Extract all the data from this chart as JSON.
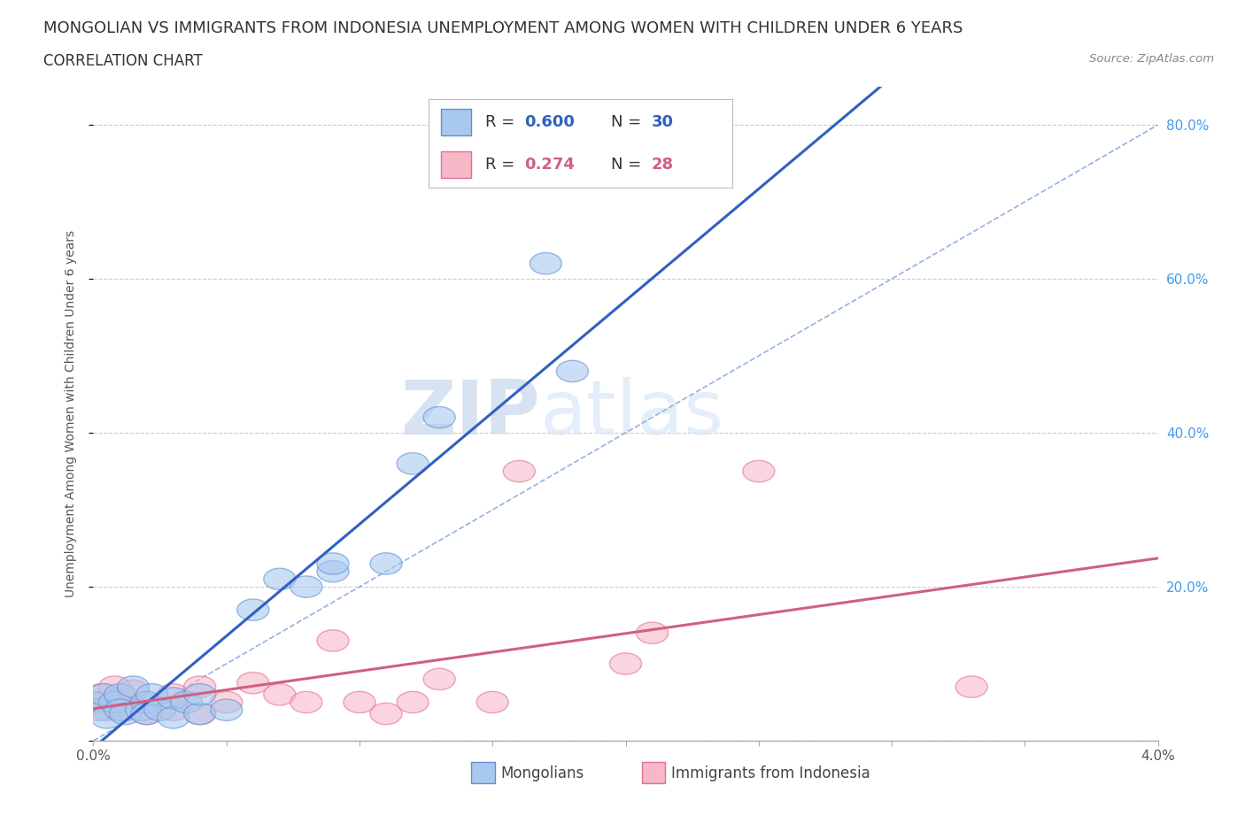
{
  "title_line1": "MONGOLIAN VS IMMIGRANTS FROM INDONESIA UNEMPLOYMENT AMONG WOMEN WITH CHILDREN UNDER 6 YEARS",
  "title_line2": "CORRELATION CHART",
  "source_text": "Source: ZipAtlas.com",
  "ylabel": "Unemployment Among Women with Children Under 6 years",
  "xlim": [
    0.0,
    0.04
  ],
  "ylim": [
    0.0,
    0.85
  ],
  "x_ticks": [
    0.0,
    0.005,
    0.01,
    0.015,
    0.02,
    0.025,
    0.03,
    0.035,
    0.04
  ],
  "x_tick_labels": [
    "0.0%",
    "",
    "",
    "",
    "",
    "",
    "",
    "",
    "4.0%"
  ],
  "y_ticks": [
    0.0,
    0.2,
    0.4,
    0.6,
    0.8
  ],
  "y_tick_labels": [
    "",
    "20.0%",
    "40.0%",
    "60.0%",
    "80.0%"
  ],
  "color_mongolian_fill": "#a8c8f0",
  "color_mongolian_edge": "#6090d0",
  "color_indonesia_fill": "#f8b8c8",
  "color_indonesia_edge": "#e07090",
  "color_trendline_mongolian": "#3060c0",
  "color_trendline_indonesia": "#d06080",
  "color_diagonal": "#88aadd",
  "mongolian_x": [
    0.0,
    0.0002,
    0.0004,
    0.0005,
    0.0008,
    0.001,
    0.001,
    0.0012,
    0.0015,
    0.0018,
    0.002,
    0.002,
    0.0022,
    0.0025,
    0.003,
    0.003,
    0.0035,
    0.004,
    0.004,
    0.005,
    0.006,
    0.007,
    0.008,
    0.009,
    0.009,
    0.011,
    0.012,
    0.013,
    0.017,
    0.018
  ],
  "mongolian_y": [
    0.05,
    0.04,
    0.06,
    0.03,
    0.05,
    0.06,
    0.04,
    0.035,
    0.07,
    0.04,
    0.05,
    0.035,
    0.06,
    0.04,
    0.055,
    0.03,
    0.05,
    0.035,
    0.06,
    0.04,
    0.17,
    0.21,
    0.2,
    0.22,
    0.23,
    0.23,
    0.36,
    0.42,
    0.62,
    0.48
  ],
  "indonesia_x": [
    0.0,
    0.0003,
    0.0005,
    0.0008,
    0.001,
    0.0012,
    0.0015,
    0.002,
    0.002,
    0.003,
    0.003,
    0.004,
    0.004,
    0.005,
    0.006,
    0.007,
    0.008,
    0.009,
    0.01,
    0.011,
    0.012,
    0.013,
    0.015,
    0.016,
    0.02,
    0.021,
    0.025,
    0.033
  ],
  "indonesia_y": [
    0.05,
    0.06,
    0.04,
    0.07,
    0.055,
    0.04,
    0.065,
    0.05,
    0.035,
    0.06,
    0.04,
    0.035,
    0.07,
    0.05,
    0.075,
    0.06,
    0.05,
    0.13,
    0.05,
    0.035,
    0.05,
    0.08,
    0.05,
    0.35,
    0.1,
    0.14,
    0.35,
    0.07
  ],
  "watermark_zip": "ZIP",
  "watermark_atlas": "atlas",
  "background_color": "#ffffff",
  "title_fontsize": 13,
  "subtitle_fontsize": 12,
  "axis_label_fontsize": 10,
  "tick_fontsize": 11,
  "legend_fontsize": 13
}
